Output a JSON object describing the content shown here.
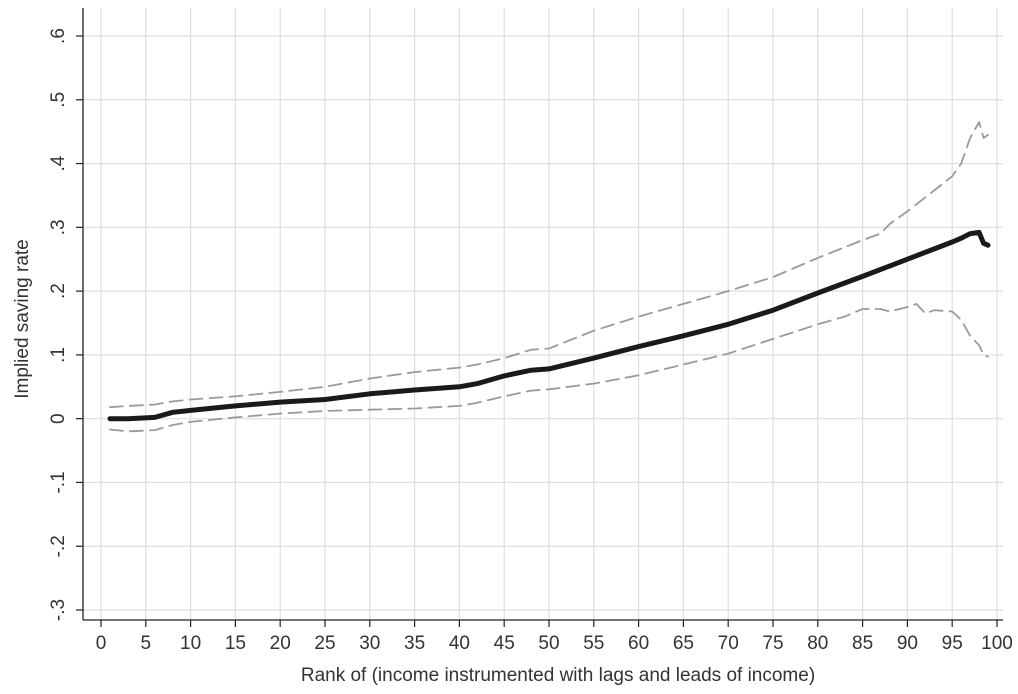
{
  "chart_data": {
    "type": "line",
    "title": "",
    "xlabel": "Rank of (income instrumented with lags and leads of income)",
    "ylabel": "Implied saving rate",
    "xlim": [
      0,
      100
    ],
    "ylim": [
      -0.3,
      0.6
    ],
    "x_ticks": [
      0,
      5,
      10,
      15,
      20,
      25,
      30,
      35,
      40,
      45,
      50,
      55,
      60,
      65,
      70,
      75,
      80,
      85,
      90,
      95,
      100
    ],
    "x_tick_labels": [
      "0",
      "5",
      "10",
      "15",
      "20",
      "25",
      "30",
      "35",
      "40",
      "45",
      "50",
      "55",
      "60",
      "65",
      "70",
      "75",
      "80",
      "85",
      "90",
      "95",
      "100"
    ],
    "y_ticks": [
      -0.3,
      -0.2,
      -0.1,
      0,
      0.1,
      0.2,
      0.3,
      0.4,
      0.5,
      0.6
    ],
    "y_tick_labels": [
      "-.3",
      "-.2",
      "-.1",
      "0",
      ".1",
      ".2",
      ".3",
      ".4",
      ".5",
      ".6"
    ],
    "grid": true,
    "legend": "none",
    "colors": {
      "estimate": "#1a1a1a",
      "ci": "#9a9a9a",
      "grid": "#dedede",
      "axis": "#222222"
    },
    "series": [
      {
        "role": "estimate",
        "style": "solid",
        "x": [
          1,
          3,
          6,
          8,
          10,
          15,
          20,
          25,
          30,
          35,
          40,
          42,
          45,
          48,
          50,
          55,
          60,
          65,
          70,
          75,
          80,
          85,
          90,
          95,
          96,
          97,
          98,
          98.5,
          99
        ],
        "y": [
          0.0,
          0.0,
          0.002,
          0.01,
          0.013,
          0.02,
          0.026,
          0.03,
          0.039,
          0.045,
          0.05,
          0.055,
          0.067,
          0.076,
          0.078,
          0.095,
          0.113,
          0.13,
          0.148,
          0.17,
          0.197,
          0.223,
          0.25,
          0.277,
          0.283,
          0.29,
          0.292,
          0.275,
          0.272
        ]
      },
      {
        "role": "upper-ci",
        "style": "dashed",
        "x": [
          1,
          3,
          6,
          8,
          10,
          15,
          20,
          25,
          30,
          35,
          40,
          42,
          45,
          48,
          50,
          55,
          60,
          65,
          70,
          75,
          80,
          85,
          87,
          88,
          90,
          95,
          96,
          97,
          98,
          98.5,
          99
        ],
        "y": [
          0.018,
          0.02,
          0.022,
          0.027,
          0.03,
          0.035,
          0.042,
          0.05,
          0.063,
          0.073,
          0.08,
          0.085,
          0.095,
          0.108,
          0.11,
          0.138,
          0.16,
          0.18,
          0.2,
          0.222,
          0.252,
          0.28,
          0.29,
          0.305,
          0.325,
          0.38,
          0.4,
          0.44,
          0.465,
          0.44,
          0.445
        ]
      },
      {
        "role": "lower-ci",
        "style": "dashed",
        "x": [
          1,
          3,
          6,
          8,
          10,
          15,
          20,
          25,
          30,
          35,
          40,
          42,
          45,
          48,
          50,
          55,
          60,
          65,
          70,
          75,
          80,
          83,
          85,
          87,
          88,
          90,
          91,
          92,
          93,
          95,
          96,
          97,
          98,
          98.5,
          99
        ],
        "y": [
          -0.017,
          -0.02,
          -0.018,
          -0.01,
          -0.005,
          0.002,
          0.008,
          0.012,
          0.014,
          0.016,
          0.02,
          0.025,
          0.035,
          0.044,
          0.046,
          0.055,
          0.068,
          0.085,
          0.102,
          0.125,
          0.148,
          0.16,
          0.172,
          0.172,
          0.168,
          0.175,
          0.18,
          0.165,
          0.17,
          0.168,
          0.155,
          0.13,
          0.115,
          0.1,
          0.097
        ]
      }
    ]
  }
}
